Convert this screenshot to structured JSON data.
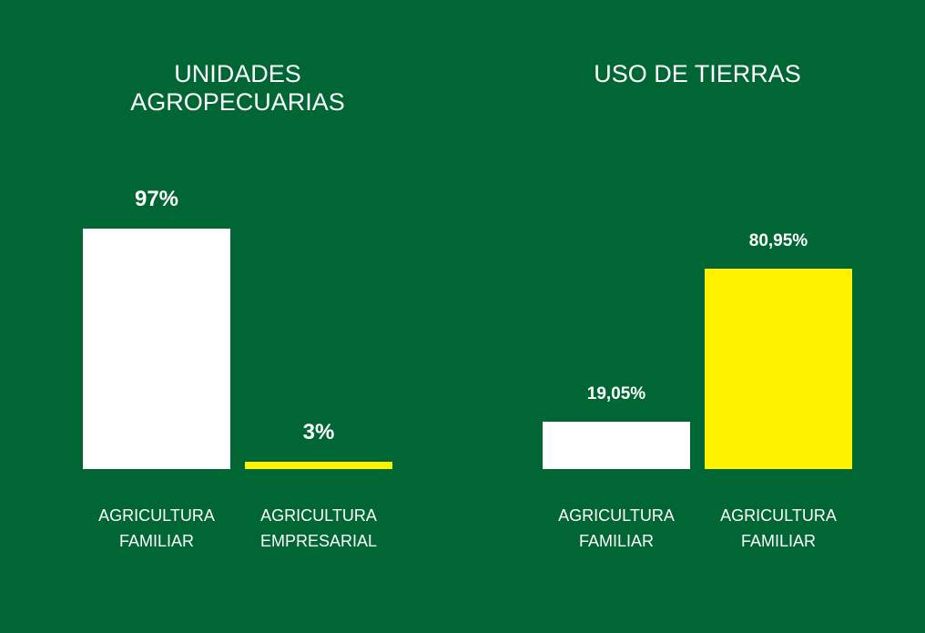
{
  "chart_data": [
    {
      "type": "bar",
      "title": "UNIDADES AGROPECUARIAS",
      "categories": [
        "AGRICULTURA FAMILIAR",
        "AGRICULTURA EMPRESARIAL"
      ],
      "values": [
        97,
        3
      ],
      "value_labels": [
        "97%",
        "3%"
      ],
      "colors": [
        "#ffffff",
        "#fff200"
      ]
    },
    {
      "type": "bar",
      "title": "USO DE TIERRAS",
      "categories": [
        "AGRICULTURA FAMILIAR",
        "AGRICULTURA FAMILIAR"
      ],
      "values": [
        19.05,
        80.95
      ],
      "value_labels": [
        "19,05%",
        "80,95%"
      ],
      "colors": [
        "#ffffff",
        "#fff200"
      ]
    }
  ]
}
